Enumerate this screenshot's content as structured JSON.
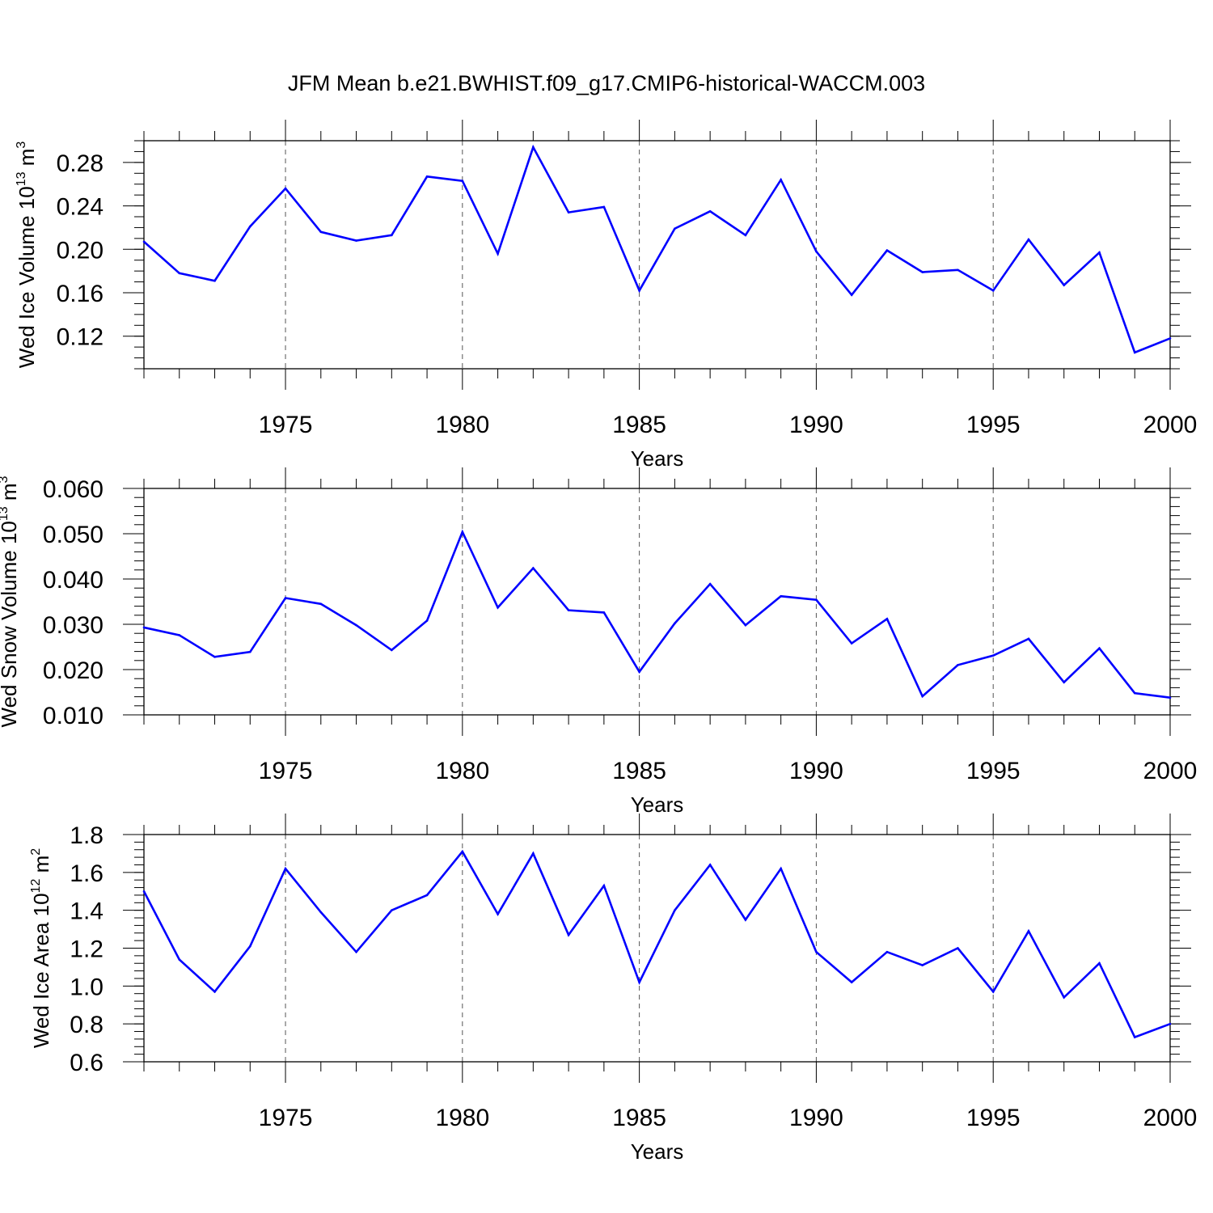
{
  "title": "JFM Mean b.e21.BWHIST.f09_g17.CMIP6-historical-WACCM.003",
  "line_color": "#0000ff",
  "chart_data": [
    {
      "type": "line",
      "ylabel": {
        "main": "Wed Ice Volume 10",
        "exp": "13",
        "mid": " m",
        "unit_exp": "3"
      },
      "xlabel": "Years",
      "xlim": [
        1971,
        2000
      ],
      "ylim": [
        0.09,
        0.3
      ],
      "yticks": [
        0.12,
        0.16,
        0.2,
        0.24,
        0.28
      ],
      "ytick_labels": [
        "0.12",
        "0.16",
        "0.20",
        "0.24",
        "0.28"
      ],
      "yminor": 0.01,
      "xticks": [
        1975,
        1980,
        1985,
        1990,
        1995,
        2000
      ],
      "xtick_labels": [
        "1975",
        "1980",
        "1985",
        "1990",
        "1995",
        "2000"
      ],
      "series": [
        {
          "x": [
            1971,
            1972,
            1973,
            1974,
            1975,
            1976,
            1977,
            1978,
            1979,
            1980,
            1981,
            1982,
            1983,
            1984,
            1985,
            1986,
            1987,
            1988,
            1989,
            1990,
            1991,
            1992,
            1993,
            1994,
            1995,
            1996,
            1997,
            1998,
            1999,
            2000
          ],
          "values": [
            0.207,
            0.178,
            0.171,
            0.221,
            0.256,
            0.216,
            0.208,
            0.213,
            0.267,
            0.263,
            0.196,
            0.294,
            0.234,
            0.239,
            0.162,
            0.219,
            0.235,
            0.213,
            0.264,
            0.198,
            0.158,
            0.199,
            0.179,
            0.181,
            0.162,
            0.209,
            0.167,
            0.197,
            0.105,
            0.118
          ]
        }
      ]
    },
    {
      "type": "line",
      "ylabel": {
        "main": "Wed Snow Volume 10",
        "exp": "13",
        "mid": " m",
        "unit_exp": "3"
      },
      "xlabel": "Years",
      "xlim": [
        1971,
        2000
      ],
      "ylim": [
        0.01,
        0.06
      ],
      "yticks": [
        0.01,
        0.02,
        0.03,
        0.04,
        0.05,
        0.06
      ],
      "ytick_labels": [
        "0.010",
        "0.020",
        "0.030",
        "0.040",
        "0.050",
        "0.060"
      ],
      "yminor": 0.002,
      "xticks": [
        1975,
        1980,
        1985,
        1990,
        1995,
        2000
      ],
      "xtick_labels": [
        "1975",
        "1980",
        "1985",
        "1990",
        "1995",
        "2000"
      ],
      "series": [
        {
          "x": [
            1971,
            1972,
            1973,
            1974,
            1975,
            1976,
            1977,
            1978,
            1979,
            1980,
            1981,
            1982,
            1983,
            1984,
            1985,
            1986,
            1987,
            1988,
            1989,
            1990,
            1991,
            1992,
            1993,
            1994,
            1995,
            1996,
            1997,
            1998,
            1999,
            2000
          ],
          "values": [
            0.0293,
            0.0276,
            0.0228,
            0.0239,
            0.0358,
            0.0345,
            0.0298,
            0.0243,
            0.0308,
            0.0504,
            0.0337,
            0.0424,
            0.0331,
            0.0326,
            0.0195,
            0.0302,
            0.0389,
            0.0298,
            0.0362,
            0.0354,
            0.0258,
            0.0312,
            0.0141,
            0.021,
            0.0231,
            0.0268,
            0.0172,
            0.0247,
            0.0148,
            0.0138
          ]
        }
      ]
    },
    {
      "type": "line",
      "ylabel": {
        "main": "Wed Ice Area 10",
        "exp": "12",
        "mid": " m",
        "unit_exp": "2"
      },
      "xlabel": "Years",
      "xlim": [
        1971,
        2000
      ],
      "ylim": [
        0.6,
        1.8
      ],
      "yticks": [
        0.6,
        0.8,
        1.0,
        1.2,
        1.4,
        1.6,
        1.8
      ],
      "ytick_labels": [
        "0.6",
        "0.8",
        "1.0",
        "1.2",
        "1.4",
        "1.6",
        "1.8"
      ],
      "yminor": 0.04,
      "xticks": [
        1975,
        1980,
        1985,
        1990,
        1995,
        2000
      ],
      "xtick_labels": [
        "1975",
        "1980",
        "1985",
        "1990",
        "1995",
        "2000"
      ],
      "series": [
        {
          "x": [
            1971,
            1972,
            1973,
            1974,
            1975,
            1976,
            1977,
            1978,
            1979,
            1980,
            1981,
            1982,
            1983,
            1984,
            1985,
            1986,
            1987,
            1988,
            1989,
            1990,
            1991,
            1992,
            1993,
            1994,
            1995,
            1996,
            1997,
            1998,
            1999,
            2000
          ],
          "values": [
            1.5,
            1.14,
            0.97,
            1.21,
            1.62,
            1.39,
            1.18,
            1.4,
            1.48,
            1.71,
            1.38,
            1.7,
            1.27,
            1.53,
            1.02,
            1.4,
            1.64,
            1.35,
            1.62,
            1.18,
            1.02,
            1.18,
            1.11,
            1.2,
            0.97,
            1.29,
            0.94,
            1.12,
            0.73,
            0.8
          ]
        }
      ]
    }
  ]
}
